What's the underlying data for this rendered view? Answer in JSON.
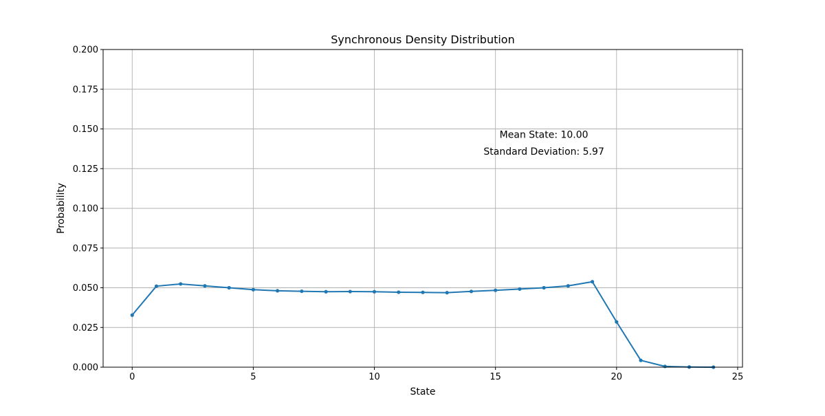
{
  "chart_data": {
    "type": "line",
    "title": "Synchronous Density Distribution",
    "xlabel": "State",
    "ylabel": "Probability",
    "xlim": [
      -1.2,
      25.2
    ],
    "ylim": [
      0,
      0.2
    ],
    "x_ticks": [
      0,
      5,
      10,
      15,
      20,
      25
    ],
    "y_ticks": [
      0.0,
      0.025,
      0.05,
      0.075,
      0.1,
      0.125,
      0.15,
      0.175,
      0.2
    ],
    "x_tick_labels": [
      "0",
      "5",
      "10",
      "15",
      "20",
      "25"
    ],
    "y_tick_labels": [
      "0.000",
      "0.025",
      "0.050",
      "0.075",
      "0.100",
      "0.125",
      "0.150",
      "0.175",
      "0.200"
    ],
    "grid": true,
    "series": [
      {
        "color": "#1f77b4",
        "marker": "circle",
        "x": [
          0,
          1,
          2,
          3,
          4,
          5,
          6,
          7,
          8,
          9,
          10,
          11,
          12,
          13,
          14,
          15,
          16,
          17,
          18,
          19,
          20,
          21,
          22,
          23,
          24
        ],
        "y": [
          0.0328,
          0.051,
          0.0524,
          0.0512,
          0.05,
          0.0488,
          0.0481,
          0.0478,
          0.0475,
          0.0476,
          0.0475,
          0.0472,
          0.0471,
          0.0469,
          0.0477,
          0.0484,
          0.0492,
          0.05,
          0.0512,
          0.0538,
          0.0285,
          0.0043,
          0.0005,
          0.0001,
          0.0
        ]
      }
    ],
    "annotations": [
      {
        "text": "Mean State: 10.00",
        "x": 17.0,
        "y": 0.1465
      },
      {
        "text": "Standard Deviation: 5.97",
        "x": 17.0,
        "y": 0.136
      }
    ]
  }
}
